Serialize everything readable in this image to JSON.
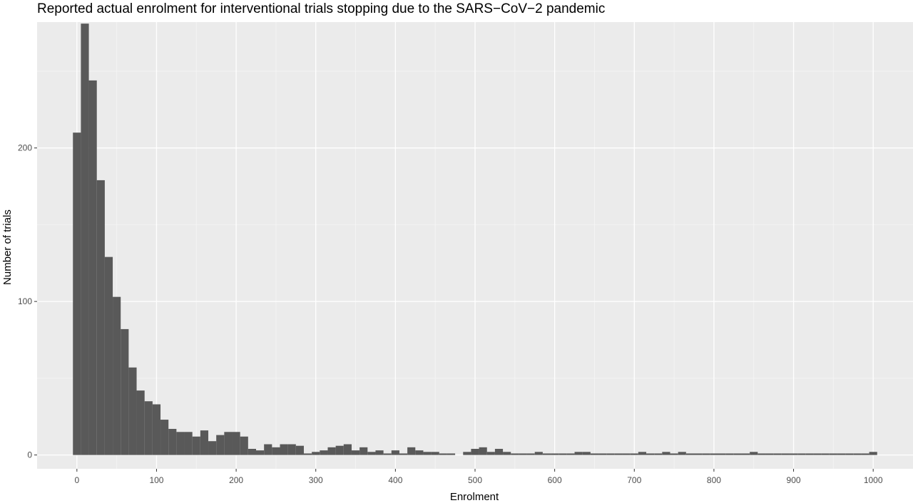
{
  "chart_data": {
    "type": "bar",
    "title": "Reported actual enrolment for interventional trials stopping due to the SARS−CoV−2 pandemic",
    "xlabel": "Enrolment",
    "ylabel": "Number of trials",
    "xlim": [
      -50,
      1050
    ],
    "ylim": [
      -9,
      282
    ],
    "x_ticks": [
      0,
      100,
      200,
      300,
      400,
      500,
      600,
      700,
      800,
      900,
      1000
    ],
    "x_tick_labels": [
      "0",
      "100",
      "200",
      "300",
      "400",
      "500",
      "600",
      "700",
      "800",
      "900",
      "1000"
    ],
    "y_ticks": [
      0,
      100,
      200
    ],
    "y_tick_labels": [
      "0",
      "100",
      "200"
    ],
    "grid": true,
    "bin_width": 10,
    "bin_centers": [
      0,
      10,
      20,
      30,
      40,
      50,
      60,
      70,
      80,
      90,
      100,
      110,
      120,
      130,
      140,
      150,
      160,
      170,
      180,
      190,
      200,
      210,
      220,
      230,
      240,
      250,
      260,
      270,
      280,
      290,
      300,
      310,
      320,
      330,
      340,
      350,
      360,
      370,
      380,
      390,
      400,
      410,
      420,
      430,
      440,
      450,
      460,
      470,
      480,
      490,
      500,
      510,
      520,
      530,
      540,
      550,
      560,
      570,
      580,
      590,
      600,
      610,
      620,
      630,
      640,
      650,
      660,
      670,
      680,
      690,
      700,
      710,
      720,
      730,
      740,
      750,
      760,
      770,
      780,
      790,
      800,
      810,
      820,
      830,
      840,
      850,
      860,
      870,
      880,
      890,
      900,
      910,
      920,
      930,
      940,
      950,
      960,
      970,
      980,
      990,
      1000
    ],
    "values": [
      210,
      281,
      244,
      179,
      129,
      103,
      82,
      57,
      42,
      35,
      33,
      23,
      17,
      15,
      15,
      12,
      16,
      9,
      13,
      15,
      15,
      12,
      4,
      3,
      7,
      5,
      7,
      7,
      6,
      1,
      2,
      3,
      5,
      6,
      7,
      3,
      5,
      2,
      3,
      1,
      3,
      1,
      5,
      3,
      2,
      2,
      1,
      1,
      0,
      2,
      4,
      5,
      2,
      4,
      2,
      1,
      1,
      1,
      2,
      1,
      1,
      1,
      1,
      2,
      2,
      1,
      1,
      1,
      1,
      1,
      1,
      2,
      1,
      1,
      2,
      1,
      2,
      1,
      1,
      1,
      1,
      1,
      1,
      1,
      1,
      2,
      1,
      1,
      1,
      1,
      1,
      1,
      1,
      1,
      1,
      1,
      1,
      1,
      1,
      1,
      2
    ],
    "colors": {
      "bar": "#595959",
      "panel": "#ebebeb",
      "grid_major": "#ffffff",
      "grid_minor": "#f5f5f5",
      "tick": "#333333"
    }
  }
}
